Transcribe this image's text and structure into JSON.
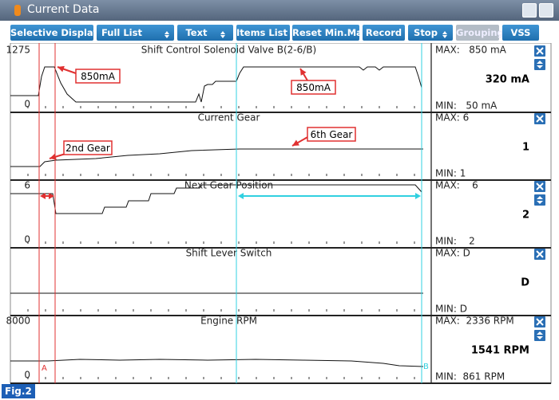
{
  "window": {
    "title": "Current Data"
  },
  "toolbar": [
    "Selective Display",
    "Full List",
    "Text",
    "Items List",
    "Reset Min.Max",
    "Record",
    "Stop",
    "Grouping",
    "VSS"
  ],
  "panels": [
    {
      "name": "Shift Control Solenoid Valve B(2-6/B)",
      "top": "1275",
      "bottom": "0",
      "max": "MAX:   850 mA",
      "value": "320 mA",
      "min": "MIN:   50 mA"
    },
    {
      "name": "Current Gear",
      "max": "MAX: 6",
      "value": "1",
      "min": "MIN: 1"
    },
    {
      "name": "Next Gear Position",
      "top": "6",
      "bottom": "0",
      "max": "MAX:    6",
      "value": "2",
      "min": "MIN:    2"
    },
    {
      "name": "Shift Lever Switch",
      "max": "MAX: D",
      "value": "D",
      "min": "MIN: D"
    },
    {
      "name": "Engine RPM",
      "top": "8000",
      "bottom": "0",
      "max": "MAX:  2336 RPM",
      "value": "1541 RPM",
      "min": "MIN:  861 RPM"
    }
  ],
  "annotations": [
    "850mA",
    "850mA",
    "2nd Gear",
    "6th Gear"
  ],
  "cursors": [
    "A",
    "B"
  ],
  "figure": "Fig.2"
}
